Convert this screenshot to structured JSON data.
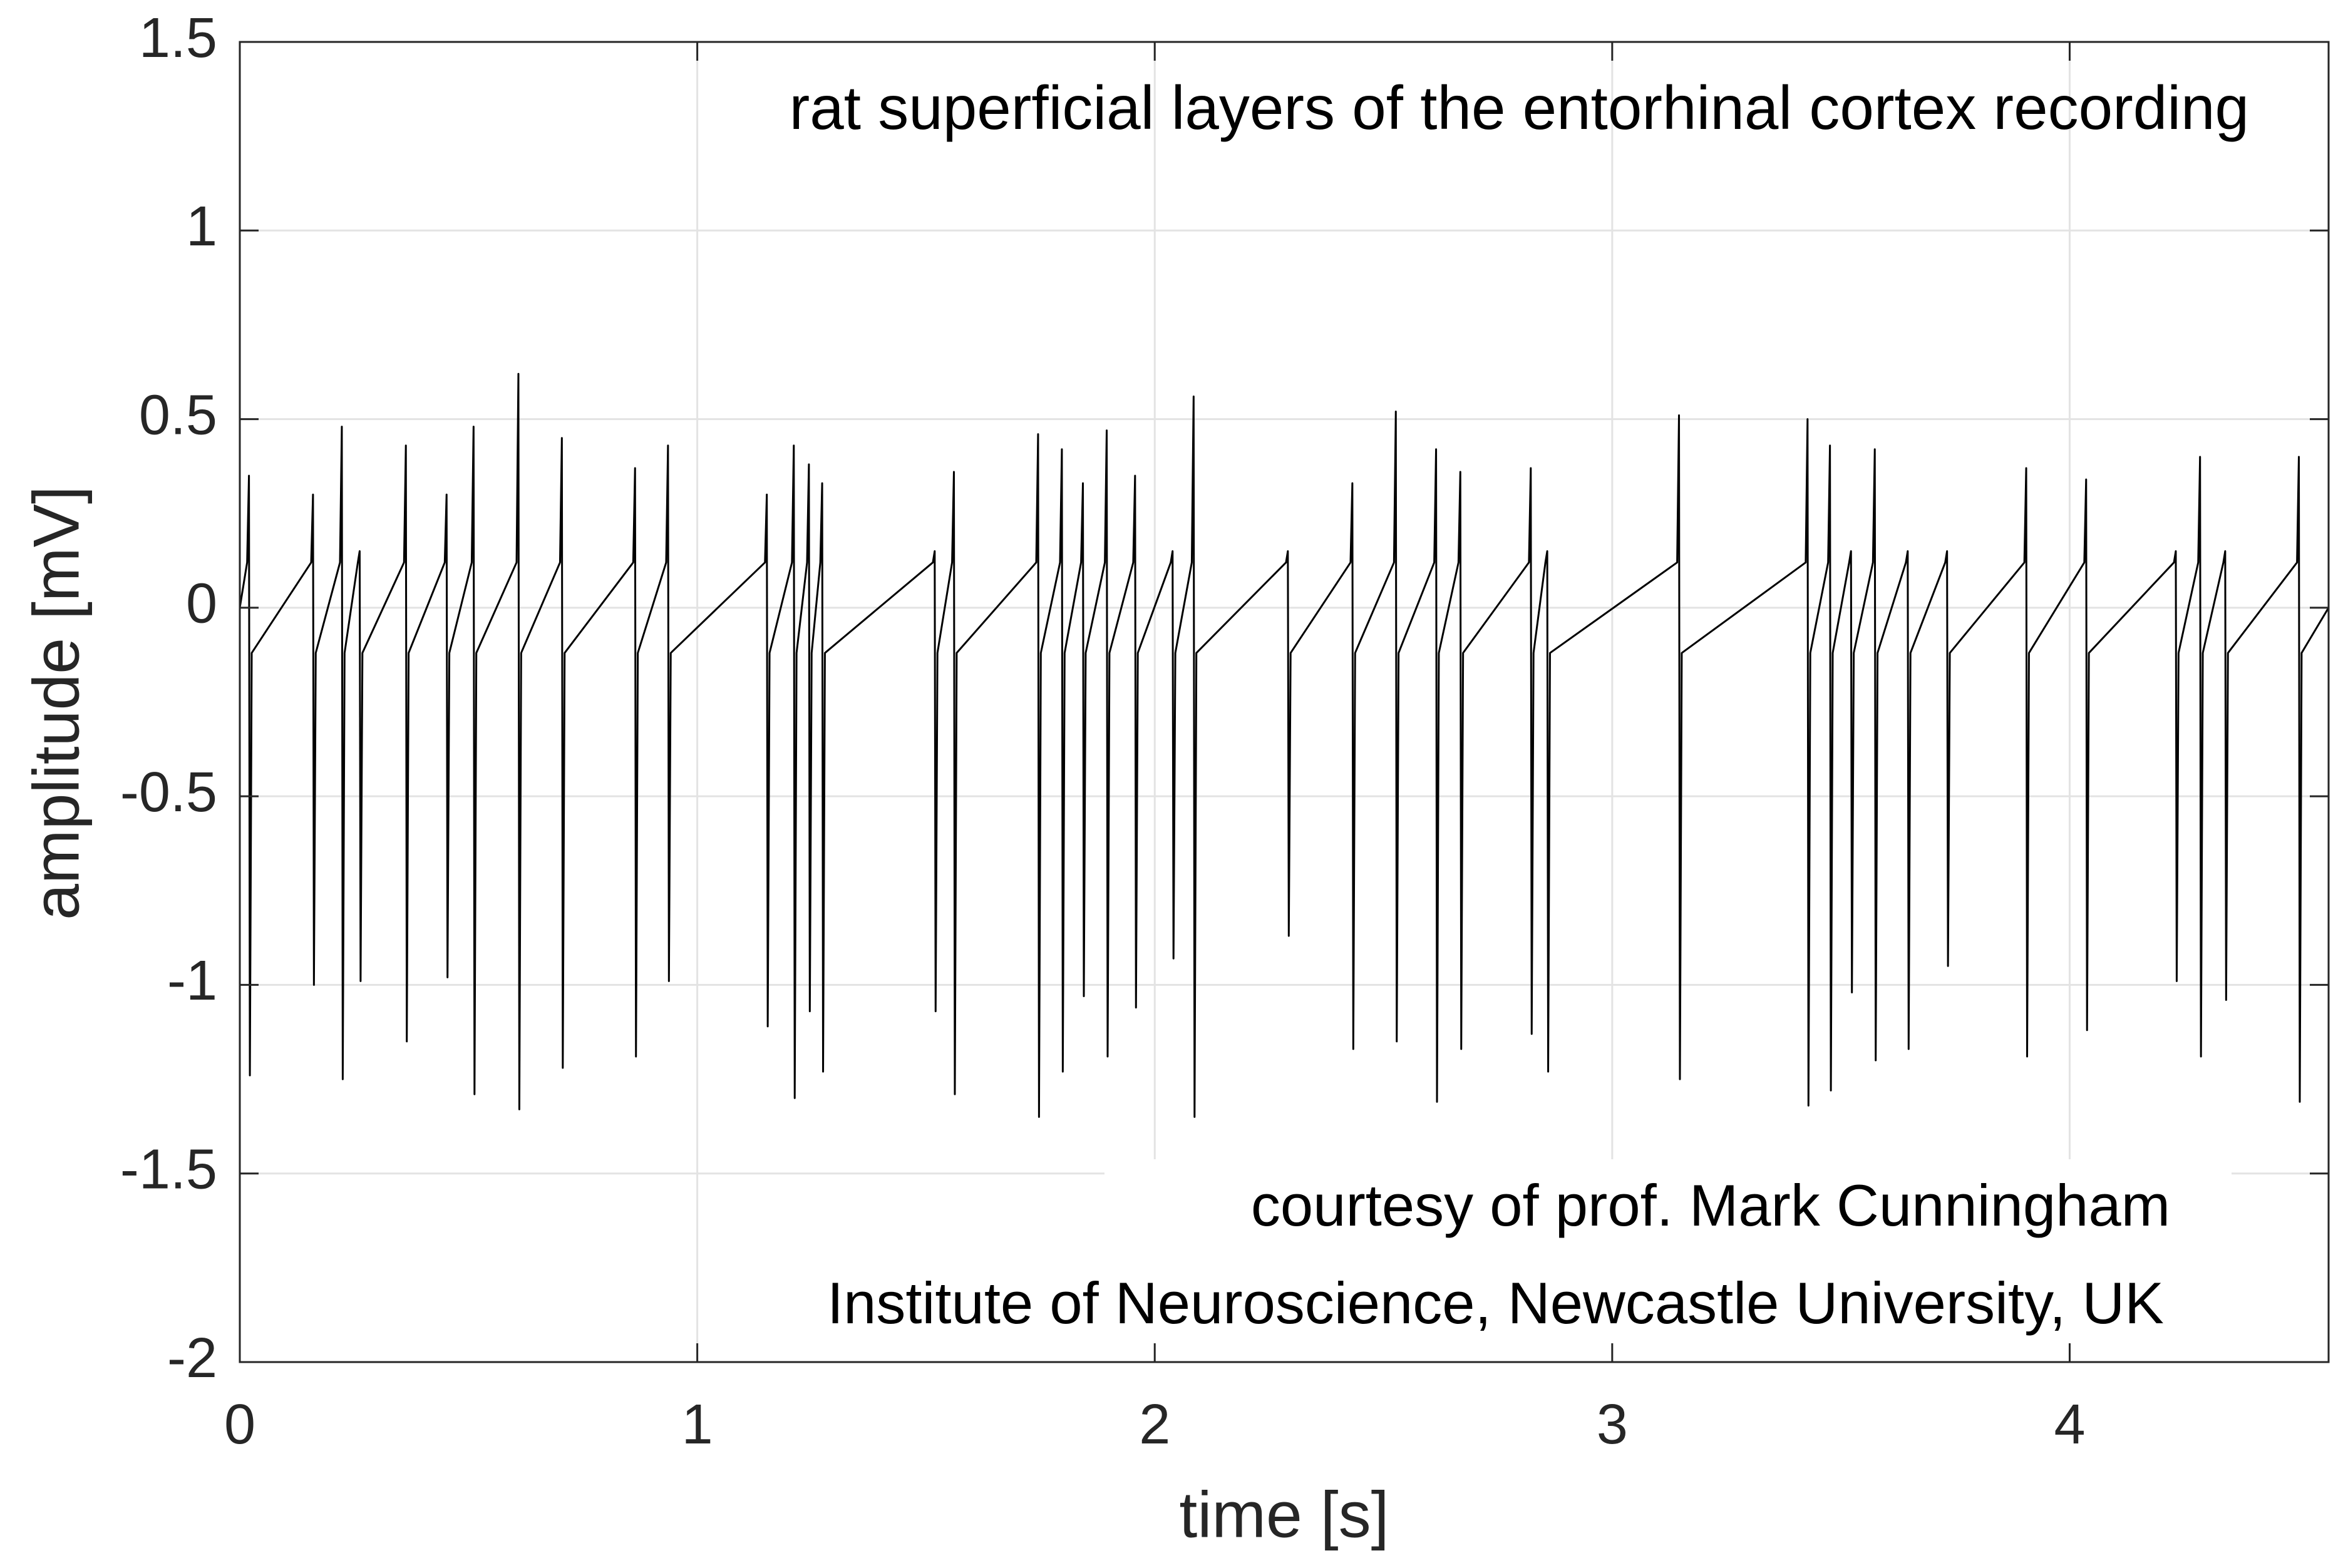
{
  "chart_data": {
    "type": "line",
    "title": "rat superficial layers of the entorhinal cortex recording",
    "xlabel": "time [s]",
    "ylabel": "amplitude [mV]",
    "annotations": [
      "courtesy of prof. Mark Cunningham",
      "Institute of Neuroscience, Newcastle University, UK"
    ],
    "xlim": [
      0,
      4.566
    ],
    "ylim": [
      -2,
      1.5
    ],
    "xticks": [
      0,
      1,
      2,
      3,
      4
    ],
    "yticks": [
      -2,
      -1.5,
      -1,
      -0.5,
      0,
      0.5,
      1,
      1.5
    ],
    "grid": true,
    "color": "#000000",
    "x": [
      0,
      0.016,
      0.02,
      0.022,
      0.026,
      0.156,
      0.16,
      0.162,
      0.166,
      0.219,
      0.223,
      0.225,
      0.229,
      0.258,
      0.262,
      0.264,
      0.268,
      0.359,
      0.363,
      0.365,
      0.369,
      0.448,
      0.452,
      0.454,
      0.458,
      0.507,
      0.511,
      0.513,
      0.517,
      0.605,
      0.609,
      0.611,
      0.615,
      0.7,
      0.704,
      0.706,
      0.71,
      0.86,
      0.864,
      0.866,
      0.87,
      0.932,
      0.936,
      0.938,
      0.942,
      1.148,
      1.152,
      1.154,
      1.158,
      1.207,
      1.211,
      1.213,
      1.217,
      1.24,
      1.244,
      1.246,
      1.25,
      1.269,
      1.273,
      1.275,
      1.279,
      1.515,
      1.519,
      1.521,
      1.525,
      1.557,
      1.561,
      1.563,
      1.567,
      1.741,
      1.745,
      1.747,
      1.751,
      1.793,
      1.797,
      1.799,
      1.803,
      1.839,
      1.843,
      1.845,
      1.849,
      1.891,
      1.895,
      1.897,
      1.901,
      1.953,
      1.957,
      1.959,
      1.963,
      2.035,
      2.039,
      2.041,
      2.045,
      2.081,
      2.085,
      2.087,
      2.091,
      2.287,
      2.291,
      2.293,
      2.297,
      2.428,
      2.432,
      2.434,
      2.438,
      2.523,
      2.527,
      2.529,
      2.533,
      2.611,
      2.615,
      2.617,
      2.621,
      2.664,
      2.668,
      2.67,
      2.674,
      2.818,
      2.822,
      2.824,
      2.828,
      2.854,
      2.858,
      2.86,
      2.864,
      3.142,
      3.146,
      3.148,
      3.152,
      3.423,
      3.427,
      3.429,
      3.433,
      3.472,
      3.476,
      3.478,
      3.482,
      3.518,
      3.522,
      3.524,
      3.528,
      3.57,
      3.574,
      3.576,
      3.58,
      3.642,
      3.646,
      3.648,
      3.652,
      3.728,
      3.732,
      3.734,
      3.738,
      3.901,
      3.905,
      3.907,
      3.911,
      4.032,
      4.036,
      4.038,
      4.042,
      4.228,
      4.232,
      4.234,
      4.238,
      4.281,
      4.285,
      4.287,
      4.291,
      4.336,
      4.34,
      4.342,
      4.346,
      4.497,
      4.501,
      4.503,
      4.507,
      4.566
    ],
    "values": [
      0,
      0.12,
      0.35,
      -1.24,
      -0.12,
      0.12,
      0.3,
      -1.0,
      -0.12,
      0.12,
      0.48,
      -1.25,
      -0.12,
      0.12,
      0.15,
      -0.99,
      -0.12,
      0.12,
      0.43,
      -1.15,
      -0.12,
      0.12,
      0.3,
      -0.98,
      -0.12,
      0.12,
      0.48,
      -1.29,
      -0.12,
      0.12,
      0.62,
      -1.33,
      -0.12,
      0.12,
      0.45,
      -1.22,
      -0.12,
      0.12,
      0.37,
      -1.19,
      -0.12,
      0.12,
      0.43,
      -0.99,
      -0.12,
      0.12,
      0.3,
      -1.11,
      -0.12,
      0.12,
      0.43,
      -1.3,
      -0.12,
      0.12,
      0.38,
      -1.07,
      -0.12,
      0.12,
      0.33,
      -1.23,
      -0.12,
      0.12,
      0.15,
      -1.07,
      -0.12,
      0.12,
      0.36,
      -1.29,
      -0.12,
      0.12,
      0.46,
      -1.35,
      -0.12,
      0.12,
      0.42,
      -1.23,
      -0.12,
      0.12,
      0.33,
      -1.03,
      -0.12,
      0.12,
      0.47,
      -1.19,
      -0.12,
      0.12,
      0.35,
      -1.06,
      -0.12,
      0.12,
      0.15,
      -0.93,
      -0.12,
      0.12,
      0.56,
      -1.35,
      -0.12,
      0.12,
      0.15,
      -0.87,
      -0.12,
      0.12,
      0.33,
      -1.17,
      -0.12,
      0.12,
      0.52,
      -1.15,
      -0.12,
      0.12,
      0.42,
      -1.31,
      -0.12,
      0.12,
      0.36,
      -1.17,
      -0.12,
      0.12,
      0.37,
      -1.13,
      -0.12,
      0.12,
      0.15,
      -1.23,
      -0.12,
      0.12,
      0.51,
      -1.25,
      -0.12,
      0.12,
      0.5,
      -1.32,
      -0.12,
      0.12,
      0.43,
      -1.28,
      -0.12,
      0.12,
      0.15,
      -1.02,
      -0.12,
      0.12,
      0.42,
      -1.2,
      -0.12,
      0.12,
      0.15,
      -1.17,
      -0.12,
      0.12,
      0.15,
      -0.95,
      -0.12,
      0.12,
      0.37,
      -1.19,
      -0.12,
      0.12,
      0.34,
      -1.12,
      -0.12,
      0.12,
      0.15,
      -0.99,
      -0.12,
      0.12,
      0.4,
      -1.19,
      -0.12,
      0.12,
      0.15,
      -1.04,
      -0.12,
      0.12,
      0.4,
      -1.31,
      -0.12,
      0
    ]
  }
}
